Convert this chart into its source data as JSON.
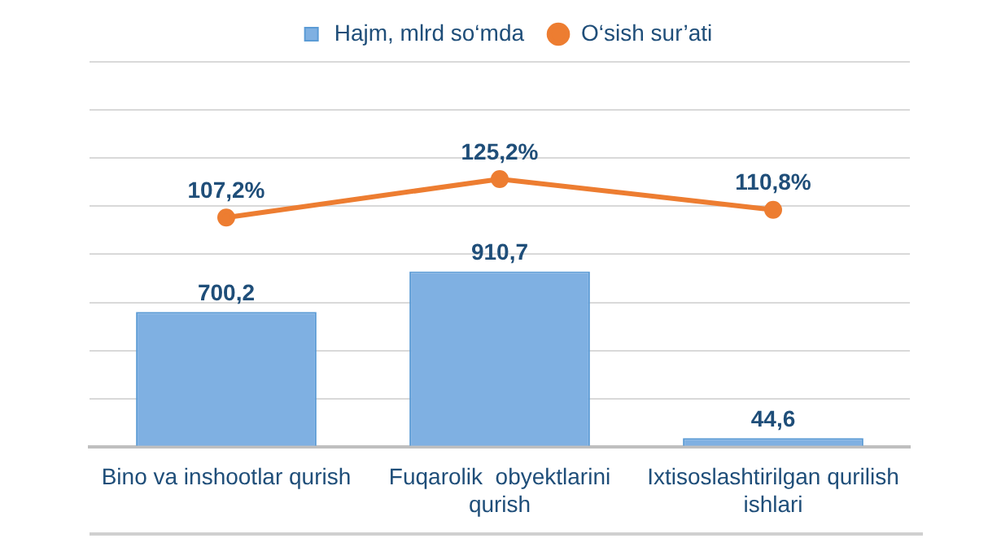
{
  "chart_data": {
    "type": "bar",
    "categories": [
      "Bino va inshootlar qurish",
      "Fuqarolik  obyektlarini qurish",
      "Ixtisoslashtirilgan qurilish ishlari"
    ],
    "series": [
      {
        "name": "Hajm, mlrd so‘mda",
        "color": "#7fb0e2",
        "values": [
          700.2,
          910.7,
          44.6
        ],
        "value_labels": [
          "700,2",
          "910,7",
          "44,6"
        ]
      },
      {
        "name": "O‘sish sur’ati",
        "type": "line",
        "axis": "y2",
        "color": "#ed7d31",
        "values": [
          107.2,
          125.2,
          110.8
        ],
        "value_labels": [
          "107,2%",
          "125,2%",
          "110,8%"
        ]
      }
    ],
    "ylim": [
      0,
      2000
    ],
    "yticks": [
      {
        "value": 0,
        "label": null
      },
      {
        "value": 250,
        "label": null
      },
      {
        "value": 500,
        "label": null
      },
      {
        "value": 750,
        "label": null
      },
      {
        "value": 1000,
        "label": null
      },
      {
        "value": 1250,
        "label": null
      },
      {
        "value": 1500,
        "label": null
      },
      {
        "value": 1750,
        "label": null
      },
      {
        "value": 2000,
        "label": null
      }
    ],
    "y2lim": [
      0,
      180
    ],
    "legend": "top",
    "grid": "y",
    "tick_labels": "x",
    "marker": "circle",
    "line_style": "solid"
  }
}
